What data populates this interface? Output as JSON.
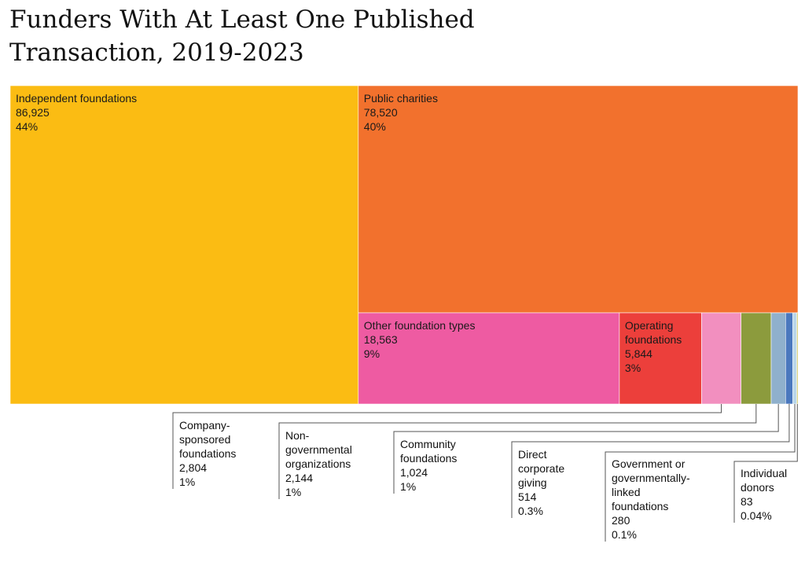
{
  "title": "Funders With At Least One Published Transaction, 2019-2023",
  "chart_data": {
    "type": "treemap",
    "title": "Funders With At Least One Published Transaction, 2019-2023",
    "items": [
      {
        "name": "Independent foundations",
        "value": 86925,
        "value_label": "86,925",
        "pct_label": "44%",
        "color": "#fbbc13"
      },
      {
        "name": "Public charities",
        "value": 78520,
        "value_label": "78,520",
        "pct_label": "40%",
        "color": "#f2712d"
      },
      {
        "name": "Other foundation types",
        "value": 18563,
        "value_label": "18,563",
        "pct_label": "9%",
        "color": "#ee5ba2"
      },
      {
        "name": "Operating foundations",
        "value": 5844,
        "value_label": "5,844",
        "pct_label": "3%",
        "color": "#ec3f3b"
      },
      {
        "name": "Company-sponsored foundations",
        "value": 2804,
        "value_label": "2,804",
        "pct_label": "1%",
        "color": "#f28fbf"
      },
      {
        "name": "Non-governmental organizations",
        "value": 2144,
        "value_label": "2,144",
        "pct_label": "1%",
        "color": "#8c9b3d"
      },
      {
        "name": "Community foundations",
        "value": 1024,
        "value_label": "1,024",
        "pct_label": "1%",
        "color": "#8fb0cc"
      },
      {
        "name": "Direct corporate giving",
        "value": 514,
        "value_label": "514",
        "pct_label": "0.3%",
        "color": "#4a78be"
      },
      {
        "name": "Government or governmentally-linked foundations",
        "value": 280,
        "value_label": "280",
        "pct_label": "0.1%",
        "color": "#b9d6ea"
      },
      {
        "name": "Individual donors",
        "value": 83,
        "value_label": "83",
        "pct_label": "0.04%",
        "color": "#c8c050"
      }
    ],
    "callout_labels": {
      "Company-sponsored foundations": [
        "Company-",
        "sponsored",
        "foundations"
      ],
      "Non-governmental organizations": [
        "Non-",
        "governmental",
        "organizations"
      ],
      "Community foundations": [
        "Community",
        "foundations"
      ],
      "Direct corporate giving": [
        "Direct",
        "corporate",
        "giving"
      ],
      "Government or governmentally-linked foundations": [
        "Government or",
        "governmentally-",
        "linked",
        "foundations"
      ],
      "Individual donors": [
        "Individual",
        "donors"
      ]
    },
    "inside_labels": {
      "Independent foundations": [
        "Independent foundations"
      ],
      "Public charities": [
        "Public charities"
      ],
      "Other foundation types": [
        "Other foundation types"
      ],
      "Operating foundations": [
        "Operating",
        "foundations"
      ]
    }
  }
}
